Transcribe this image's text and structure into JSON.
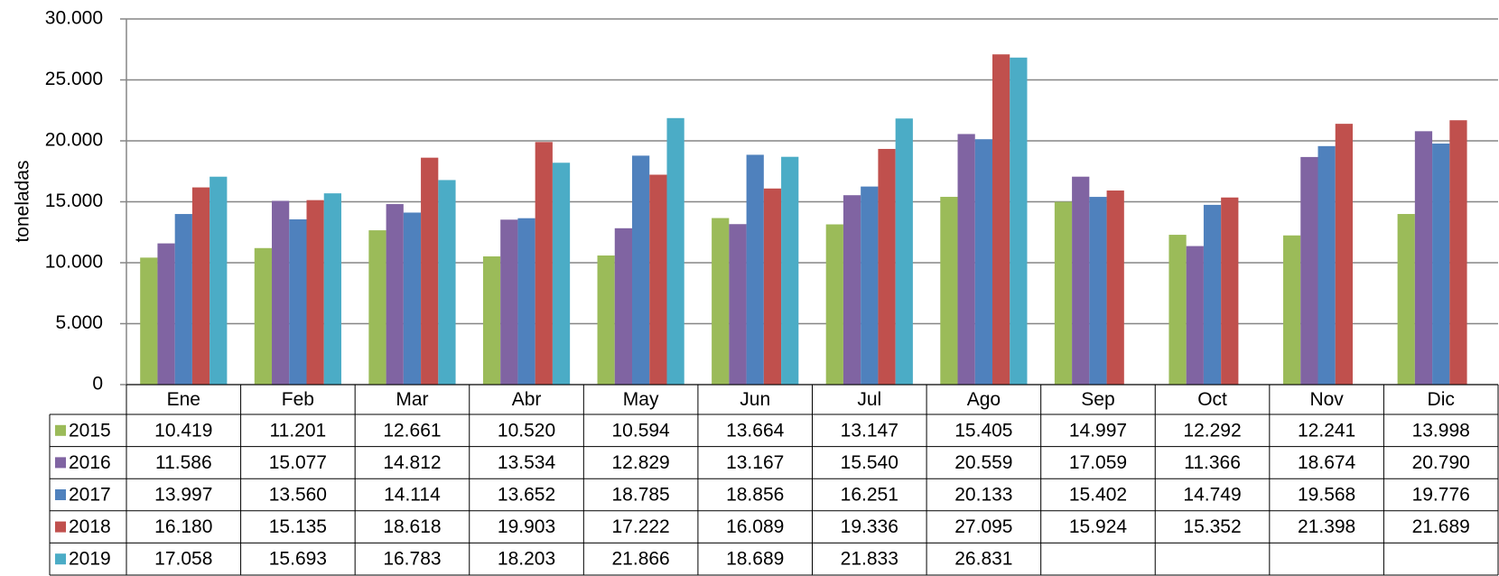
{
  "chart_data": {
    "type": "bar",
    "y_label": "toneladas",
    "categories": [
      "Ene",
      "Feb",
      "Mar",
      "Abr",
      "May",
      "Jun",
      "Jul",
      "Ago",
      "Sep",
      "Oct",
      "Nov",
      "Dic"
    ],
    "series": [
      {
        "name": "2015",
        "color": "#9bbb59",
        "values": [
          10419,
          11201,
          12661,
          10520,
          10594,
          13664,
          13147,
          15405,
          14997,
          12292,
          12241,
          13998
        ],
        "value_labels": [
          "10.419",
          "11.201",
          "12.661",
          "10.520",
          "10.594",
          "13.664",
          "13.147",
          "15.405",
          "14.997",
          "12.292",
          "12.241",
          "13.998"
        ]
      },
      {
        "name": "2016",
        "color": "#8064a2",
        "values": [
          11586,
          15077,
          14812,
          13534,
          12829,
          13167,
          15540,
          20559,
          17059,
          11366,
          18674,
          20790
        ],
        "value_labels": [
          "11.586",
          "15.077",
          "14.812",
          "13.534",
          "12.829",
          "13.167",
          "15.540",
          "20.559",
          "17.059",
          "11.366",
          "18.674",
          "20.790"
        ]
      },
      {
        "name": "2017",
        "color": "#4f81bd",
        "values": [
          13997,
          13560,
          14114,
          13652,
          18785,
          18856,
          16251,
          20133,
          15402,
          14749,
          19568,
          19776
        ],
        "value_labels": [
          "13.997",
          "13.560",
          "14.114",
          "13.652",
          "18.785",
          "18.856",
          "16.251",
          "20.133",
          "15.402",
          "14.749",
          "19.568",
          "19.776"
        ]
      },
      {
        "name": "2018",
        "color": "#c0504d",
        "values": [
          16180,
          15135,
          18618,
          19903,
          17222,
          16089,
          19336,
          27095,
          15924,
          15352,
          21398,
          21689
        ],
        "value_labels": [
          "16.180",
          "15.135",
          "18.618",
          "19.903",
          "17.222",
          "16.089",
          "19.336",
          "27.095",
          "15.924",
          "15.352",
          "21.398",
          "21.689"
        ]
      },
      {
        "name": "2019",
        "color": "#4bacc6",
        "values": [
          17058,
          15693,
          16783,
          18203,
          21866,
          18689,
          21833,
          26831,
          null,
          null,
          null,
          null
        ],
        "value_labels": [
          "17.058",
          "15.693",
          "16.783",
          "18.203",
          "21.866",
          "18.689",
          "21.833",
          "26.831",
          null,
          null,
          null,
          null
        ]
      }
    ],
    "ylim": [
      0,
      30000
    ],
    "yticks": [
      0,
      {
        "value": 5000,
        "label": "5.000"
      },
      {
        "value": 10000,
        "label": "10.000"
      },
      {
        "value": 15000,
        "label": "15.000"
      },
      {
        "value": 20000,
        "label": "20.000"
      },
      {
        "value": 25000,
        "label": "25.000"
      },
      {
        "value": 30000,
        "label": "30.000"
      }
    ],
    "grid": true
  }
}
